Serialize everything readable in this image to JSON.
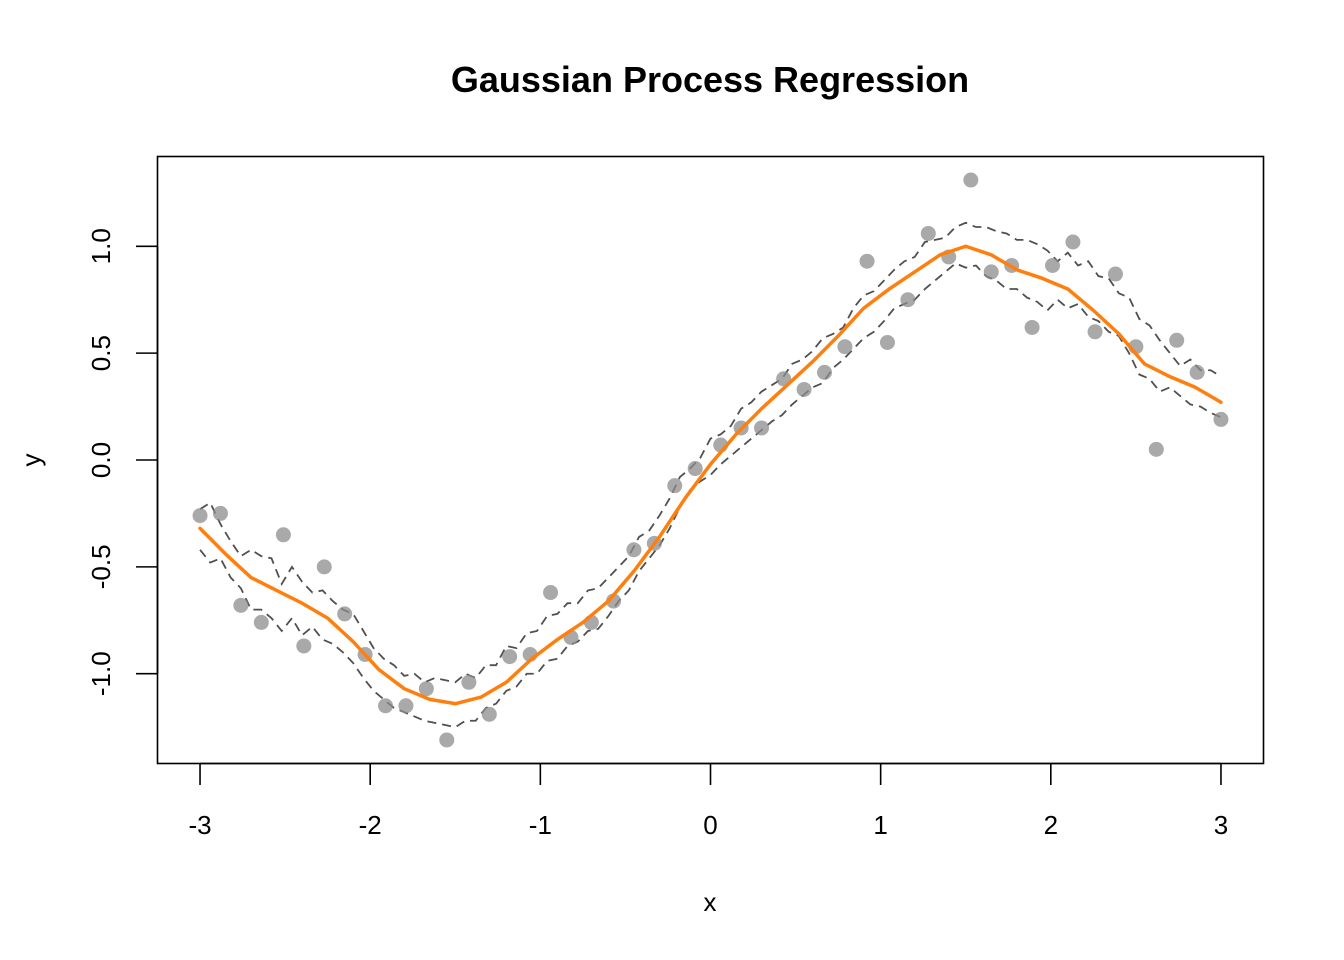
{
  "chart_data": {
    "type": "line",
    "title": "Gaussian Process Regression",
    "xlabel": "x",
    "ylabel": "y",
    "xlim": [
      -3.25,
      3.25
    ],
    "ylim": [
      -1.42,
      1.42
    ],
    "x_ticks": [
      -3,
      -2,
      -1,
      0,
      1,
      2,
      3
    ],
    "x_tick_labels": [
      "-3",
      "-2",
      "-1",
      "0",
      "1",
      "2",
      "3"
    ],
    "y_ticks": [
      -1.0,
      -0.5,
      0.0,
      0.5,
      1.0
    ],
    "y_tick_labels": [
      "-1.0",
      "-0.5",
      "0.0",
      "0.5",
      "1.0"
    ],
    "grid": false,
    "legend": "none",
    "colors": {
      "mean": "#ff7f0e",
      "band": "#505050",
      "points": "#8c8c8c"
    },
    "points": {
      "x": [
        -3.0,
        -2.88,
        -2.76,
        -2.64,
        -2.51,
        -2.39,
        -2.27,
        -2.15,
        -2.03,
        -1.91,
        -1.79,
        -1.67,
        -1.55,
        -1.42,
        -1.3,
        -1.18,
        -1.06,
        -0.94,
        -0.82,
        -0.7,
        -0.57,
        -0.45,
        -0.33,
        -0.21,
        -0.09,
        0.06,
        0.18,
        0.3,
        0.43,
        0.55,
        0.67,
        0.79,
        0.92,
        1.04,
        1.16,
        1.28,
        1.4,
        1.53,
        1.65,
        1.77,
        1.89,
        2.01,
        2.13,
        2.26,
        2.38,
        2.5,
        2.62,
        2.74,
        2.86,
        3.0
      ],
      "y": [
        -0.26,
        -0.25,
        -0.68,
        -0.76,
        -0.35,
        -0.87,
        -0.5,
        -0.72,
        -0.91,
        -1.15,
        -1.15,
        -1.07,
        -1.31,
        -1.04,
        -1.19,
        -0.92,
        -0.91,
        -0.62,
        -0.83,
        -0.76,
        -0.66,
        -0.42,
        -0.39,
        -0.12,
        -0.04,
        0.07,
        0.15,
        0.15,
        0.38,
        0.33,
        0.41,
        0.53,
        0.93,
        0.55,
        0.75,
        1.06,
        0.95,
        1.31,
        0.88,
        0.91,
        0.62,
        0.91,
        1.02,
        0.6,
        0.87,
        0.53,
        0.05,
        0.56,
        0.41,
        0.19
      ]
    },
    "mean": {
      "x": [
        -3.0,
        -2.85,
        -2.7,
        -2.55,
        -2.4,
        -2.25,
        -2.1,
        -1.95,
        -1.8,
        -1.65,
        -1.5,
        -1.35,
        -1.2,
        -1.05,
        -0.9,
        -0.75,
        -0.6,
        -0.45,
        -0.3,
        -0.15,
        0.0,
        0.15,
        0.3,
        0.45,
        0.6,
        0.75,
        0.9,
        1.05,
        1.2,
        1.35,
        1.5,
        1.65,
        1.8,
        1.95,
        2.1,
        2.25,
        2.4,
        2.55,
        2.7,
        2.85,
        3.0
      ],
      "y": [
        -0.32,
        -0.44,
        -0.55,
        -0.61,
        -0.67,
        -0.74,
        -0.85,
        -0.98,
        -1.07,
        -1.12,
        -1.14,
        -1.11,
        -1.04,
        -0.93,
        -0.84,
        -0.76,
        -0.66,
        -0.52,
        -0.36,
        -0.18,
        -0.02,
        0.12,
        0.24,
        0.35,
        0.46,
        0.58,
        0.71,
        0.8,
        0.88,
        0.96,
        1.0,
        0.96,
        0.89,
        0.85,
        0.8,
        0.7,
        0.59,
        0.45,
        0.39,
        0.34,
        0.27
      ]
    },
    "upper_band": {
      "x": [
        -3.0,
        -2.94,
        -2.88,
        -2.82,
        -2.76,
        -2.7,
        -2.64,
        -2.58,
        -2.52,
        -2.46,
        -2.4,
        -2.34,
        -2.28,
        -2.22,
        -2.16,
        -2.1,
        -2.04,
        -1.98,
        -1.92,
        -1.86,
        -1.8,
        -1.74,
        -1.68,
        -1.62,
        -1.56,
        -1.5,
        -1.44,
        -1.38,
        -1.32,
        -1.26,
        -1.2,
        -1.14,
        -1.08,
        -1.02,
        -0.96,
        -0.9,
        -0.84,
        -0.78,
        -0.72,
        -0.66,
        -0.6,
        -0.54,
        -0.48,
        -0.42,
        -0.36,
        -0.3,
        -0.24,
        -0.18,
        -0.12,
        -0.06,
        0.0,
        0.06,
        0.12,
        0.18,
        0.24,
        0.3,
        0.36,
        0.42,
        0.48,
        0.54,
        0.6,
        0.66,
        0.72,
        0.78,
        0.84,
        0.9,
        0.96,
        1.02,
        1.08,
        1.14,
        1.2,
        1.26,
        1.32,
        1.38,
        1.44,
        1.5,
        1.56,
        1.62,
        1.68,
        1.74,
        1.8,
        1.86,
        1.92,
        1.98,
        2.04,
        2.1,
        2.16,
        2.22,
        2.28,
        2.34,
        2.4,
        2.46,
        2.52,
        2.58,
        2.64,
        2.7,
        2.76,
        2.82,
        2.88,
        2.94,
        3.0
      ],
      "y": [
        -0.23,
        -0.2,
        -0.3,
        -0.38,
        -0.45,
        -0.42,
        -0.45,
        -0.46,
        -0.58,
        -0.5,
        -0.57,
        -0.62,
        -0.61,
        -0.66,
        -0.7,
        -0.72,
        -0.8,
        -0.88,
        -0.93,
        -0.96,
        -1.01,
        -1.0,
        -1.04,
        -1.02,
        -1.03,
        -1.04,
        -1.0,
        -1.02,
        -0.96,
        -0.96,
        -0.87,
        -0.88,
        -0.81,
        -0.8,
        -0.73,
        -0.72,
        -0.67,
        -0.67,
        -0.61,
        -0.6,
        -0.55,
        -0.5,
        -0.45,
        -0.36,
        -0.33,
        -0.26,
        -0.18,
        -0.08,
        -0.04,
        0.01,
        0.1,
        0.12,
        0.16,
        0.24,
        0.27,
        0.32,
        0.35,
        0.38,
        0.45,
        0.47,
        0.51,
        0.57,
        0.59,
        0.62,
        0.71,
        0.77,
        0.79,
        0.84,
        0.89,
        0.93,
        0.95,
        1.02,
        1.03,
        1.04,
        1.09,
        1.11,
        1.09,
        1.09,
        1.07,
        1.06,
        1.03,
        1.03,
        1.01,
        0.98,
        0.93,
        0.97,
        0.91,
        0.93,
        0.86,
        0.85,
        0.78,
        0.76,
        0.66,
        0.63,
        0.56,
        0.5,
        0.44,
        0.47,
        0.42,
        0.42,
        0.39
      ]
    },
    "lower_band": {
      "x": [
        -3.0,
        -2.94,
        -2.88,
        -2.82,
        -2.76,
        -2.7,
        -2.64,
        -2.58,
        -2.52,
        -2.46,
        -2.4,
        -2.34,
        -2.28,
        -2.22,
        -2.16,
        -2.1,
        -2.04,
        -1.98,
        -1.92,
        -1.86,
        -1.8,
        -1.74,
        -1.68,
        -1.62,
        -1.56,
        -1.5,
        -1.44,
        -1.38,
        -1.32,
        -1.26,
        -1.2,
        -1.14,
        -1.08,
        -1.02,
        -0.96,
        -0.9,
        -0.84,
        -0.78,
        -0.72,
        -0.66,
        -0.6,
        -0.54,
        -0.48,
        -0.42,
        -0.36,
        -0.3,
        -0.24,
        -0.18,
        -0.12,
        -0.06,
        0.0,
        0.06,
        0.12,
        0.18,
        0.24,
        0.3,
        0.36,
        0.42,
        0.48,
        0.54,
        0.6,
        0.66,
        0.72,
        0.78,
        0.84,
        0.9,
        0.96,
        1.02,
        1.08,
        1.14,
        1.2,
        1.26,
        1.32,
        1.38,
        1.44,
        1.5,
        1.56,
        1.62,
        1.68,
        1.74,
        1.8,
        1.86,
        1.92,
        1.98,
        2.04,
        2.1,
        2.16,
        2.22,
        2.28,
        2.34,
        2.4,
        2.46,
        2.52,
        2.58,
        2.64,
        2.7,
        2.76,
        2.82,
        2.88,
        2.94,
        3.0
      ],
      "y": [
        -0.42,
        -0.48,
        -0.46,
        -0.55,
        -0.6,
        -0.7,
        -0.7,
        -0.74,
        -0.8,
        -0.74,
        -0.82,
        -0.78,
        -0.84,
        -0.86,
        -0.9,
        -0.95,
        -1.02,
        -1.08,
        -1.12,
        -1.16,
        -1.18,
        -1.2,
        -1.22,
        -1.23,
        -1.24,
        -1.25,
        -1.22,
        -1.22,
        -1.16,
        -1.14,
        -1.08,
        -1.06,
        -1.0,
        -1.0,
        -0.94,
        -0.93,
        -0.87,
        -0.85,
        -0.8,
        -0.79,
        -0.73,
        -0.66,
        -0.61,
        -0.52,
        -0.46,
        -0.4,
        -0.32,
        -0.22,
        -0.14,
        -0.1,
        -0.07,
        -0.02,
        0.02,
        0.06,
        0.1,
        0.14,
        0.18,
        0.21,
        0.26,
        0.3,
        0.34,
        0.36,
        0.43,
        0.47,
        0.52,
        0.57,
        0.6,
        0.65,
        0.71,
        0.73,
        0.75,
        0.8,
        0.84,
        0.88,
        0.92,
        0.9,
        0.91,
        0.86,
        0.84,
        0.8,
        0.8,
        0.76,
        0.74,
        0.7,
        0.75,
        0.71,
        0.73,
        0.67,
        0.65,
        0.6,
        0.58,
        0.5,
        0.4,
        0.38,
        0.32,
        0.34,
        0.3,
        0.26,
        0.25,
        0.22,
        0.2
      ]
    }
  }
}
